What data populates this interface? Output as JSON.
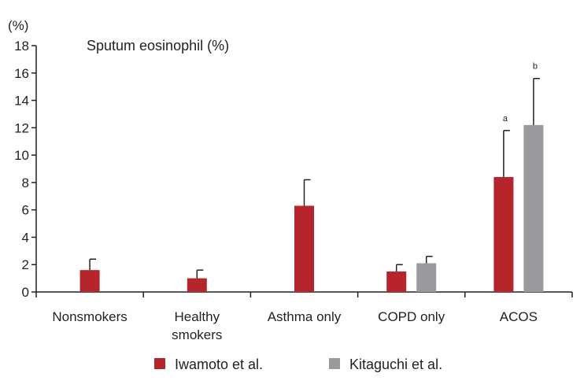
{
  "chart_data": {
    "type": "bar",
    "title": "Sputum eosinophil (%)",
    "yunit": "(%)",
    "ylim": [
      0,
      18
    ],
    "yticks": [
      0,
      2,
      4,
      6,
      8,
      10,
      12,
      14,
      16,
      18
    ],
    "categories": [
      [
        "Nonsmokers"
      ],
      [
        "Healthy",
        "smokers"
      ],
      [
        "Asthma only"
      ],
      [
        "COPD only"
      ],
      [
        "ACOS"
      ]
    ],
    "series": [
      {
        "name": "Iwamoto et al.",
        "color": "#b5252b",
        "values": [
          1.6,
          1.0,
          6.3,
          1.5,
          8.4
        ],
        "errors": [
          0.8,
          0.6,
          1.9,
          0.5,
          3.4
        ],
        "annotations": [
          "",
          "",
          "",
          "",
          "a"
        ]
      },
      {
        "name": "Kitaguchi et al.",
        "color": "#9a9a9e",
        "values": [
          null,
          null,
          null,
          2.1,
          12.2
        ],
        "errors": [
          null,
          null,
          null,
          0.5,
          3.4
        ],
        "annotations": [
          "",
          "",
          "",
          "",
          "b"
        ]
      }
    ],
    "grid": false,
    "legend_position": "bottom"
  }
}
